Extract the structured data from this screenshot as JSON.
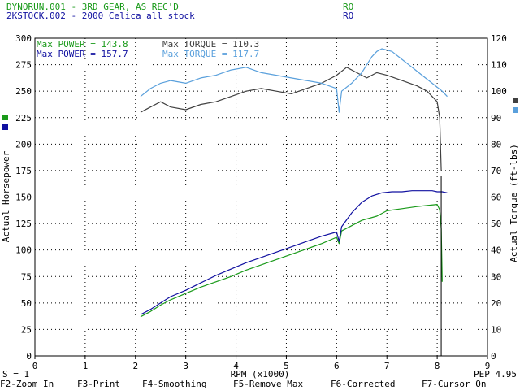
{
  "header": {
    "run1_label": "DYNORUN.001 - 3RD GEAR, AS REC'D",
    "run1_tag": "RO",
    "run2_label": "2KSTOCK.002 - 2000 Celica    all stock",
    "run2_tag": "RO"
  },
  "legend": {
    "run1_power": "Max POWER = 143.8",
    "run1_torque": "Max TORQUE = 110.3",
    "run2_power": "Max POWER = 157.7",
    "run2_torque": "Max TORQUE = 117.7"
  },
  "status": {
    "smoothing": "S = 1",
    "version": "PEP 4.95"
  },
  "function_keys": [
    {
      "label": "F2-Zoom In"
    },
    {
      "label": "F3-Print"
    },
    {
      "label": "F4-Smoothing"
    },
    {
      "label": "F5-Remove Max"
    },
    {
      "label": "F6-Corrected"
    },
    {
      "label": "F7-Cursor On"
    }
  ],
  "colors": {
    "run1_power": "#1a9a1a",
    "run1_torque": "#404040",
    "run2_power": "#1010a0",
    "run2_torque": "#5aa0dc",
    "grid": "#000000"
  },
  "chart_data": {
    "type": "line",
    "xlabel": "RPM (x1000)",
    "ylabel": "Actual Horsepower",
    "y2label": "Actual Torque (ft-lbs)",
    "xlim": [
      0,
      9
    ],
    "ylim": [
      0,
      300
    ],
    "y2lim": [
      0,
      120
    ],
    "x_ticks": [
      "0",
      "1",
      "2",
      "3",
      "4",
      "5",
      "6",
      "7",
      "8",
      "9"
    ],
    "y_ticks": [
      "0",
      "25",
      "50",
      "75",
      "100",
      "125",
      "150",
      "175",
      "200",
      "225",
      "250",
      "275",
      "300"
    ],
    "y2_ticks": [
      "0",
      "10",
      "20",
      "30",
      "40",
      "50",
      "60",
      "70",
      "80",
      "90",
      "100",
      "110",
      "120"
    ],
    "grid": true,
    "series": [
      {
        "axis": "left",
        "color": "#1a9a1a",
        "x": [
          2.1,
          2.3,
          2.5,
          2.7,
          3.0,
          3.3,
          3.6,
          3.9,
          4.2,
          4.5,
          4.8,
          5.1,
          5.4,
          5.7,
          6.0,
          6.05,
          6.1,
          6.3,
          6.5,
          6.8,
          7.0,
          7.3,
          7.6,
          7.8,
          8.0,
          8.05,
          8.08,
          8.1
        ],
        "y": [
          37,
          42,
          48,
          53,
          59,
          65,
          70,
          75,
          81,
          86,
          91,
          96,
          101,
          106,
          112,
          106,
          118,
          123,
          128,
          132,
          137,
          139,
          141,
          142,
          143,
          138,
          120,
          70
        ]
      },
      {
        "axis": "left",
        "color": "#1010a0",
        "x": [
          2.1,
          2.3,
          2.5,
          2.7,
          3.0,
          3.3,
          3.6,
          3.9,
          4.2,
          4.5,
          4.8,
          5.1,
          5.4,
          5.7,
          6.0,
          6.05,
          6.1,
          6.3,
          6.5,
          6.7,
          6.9,
          7.1,
          7.3,
          7.5,
          7.7,
          7.9,
          8.0,
          8.1,
          8.2
        ],
        "y": [
          39,
          44,
          50,
          56,
          62,
          69,
          76,
          82,
          88,
          93,
          98,
          103,
          108,
          113,
          117,
          108,
          122,
          135,
          145,
          151,
          154,
          155,
          155,
          156,
          156,
          156,
          155,
          155,
          154
        ]
      },
      {
        "axis": "right",
        "color": "#404040",
        "x": [
          2.1,
          2.3,
          2.5,
          2.7,
          3.0,
          3.3,
          3.6,
          3.9,
          4.2,
          4.5,
          4.8,
          5.1,
          5.4,
          5.7,
          6.0,
          6.2,
          6.4,
          6.6,
          6.8,
          7.0,
          7.3,
          7.6,
          7.8,
          8.0,
          8.05,
          8.08
        ],
        "y": [
          92,
          94,
          96,
          94,
          93,
          95,
          96,
          98,
          100,
          101,
          100,
          99,
          101,
          103,
          106,
          109,
          107,
          105,
          107,
          106,
          104,
          102,
          100,
          96,
          90,
          70
        ]
      },
      {
        "axis": "right",
        "color": "#5aa0dc",
        "x": [
          2.1,
          2.3,
          2.5,
          2.7,
          3.0,
          3.3,
          3.6,
          3.9,
          4.2,
          4.5,
          4.8,
          5.1,
          5.4,
          5.7,
          6.0,
          6.05,
          6.1,
          6.3,
          6.5,
          6.7,
          6.8,
          6.9,
          7.1,
          7.3,
          7.5,
          7.7,
          7.9,
          8.1,
          8.2
        ],
        "y": [
          98,
          101,
          103,
          104,
          103,
          105,
          106,
          108,
          109,
          107,
          106,
          105,
          104,
          103,
          101,
          92,
          100,
          103,
          107,
          113,
          115,
          116,
          115,
          112,
          109,
          106,
          103,
          100,
          98
        ]
      }
    ]
  }
}
